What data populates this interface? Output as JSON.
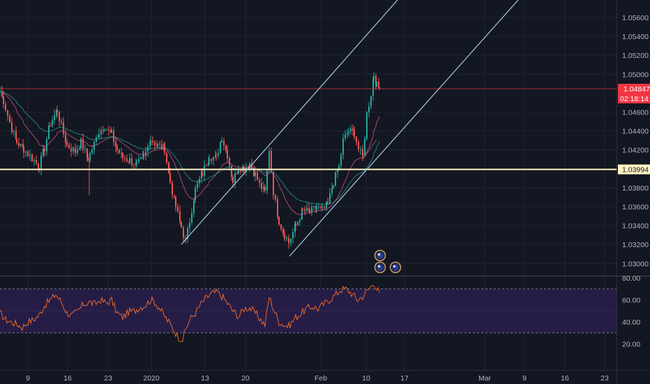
{
  "colors": {
    "background": "#131722",
    "grid": "#1f2433",
    "up": "#26a69a",
    "down": "#ef5350",
    "channel": "#a9cde8",
    "support": "#fff3c4",
    "current_price_line": "#f23645",
    "rsi_line": "#e8682a",
    "rsi_band": "#2a1f4d",
    "axis_text": "#b2b5be"
  },
  "chart_data": [
    {
      "type": "candlestick",
      "ylim": [
        1.0285,
        1.0575
      ],
      "y_ticks": [
        "1.05600",
        "1.05400",
        "1.05200",
        "1.05000",
        "1.04600",
        "1.04400",
        "1.04200",
        "1.03800",
        "1.03600",
        "1.03400",
        "1.03200",
        "1.03000"
      ],
      "x_ticks": [
        "9",
        "16",
        "23",
        "2020",
        "13",
        "20",
        "Feb",
        "10",
        "17",
        "Mar",
        "9",
        "16",
        "23"
      ],
      "price_path": [
        [
          0,
          1.0482
        ],
        [
          5,
          1.0472
        ],
        [
          14,
          1.0449
        ],
        [
          24,
          1.0428
        ],
        [
          34,
          1.0421
        ],
        [
          46,
          1.0411
        ],
        [
          56,
          1.0403
        ],
        [
          64,
          1.0422
        ],
        [
          72,
          1.0448
        ],
        [
          82,
          1.0462
        ],
        [
          88,
          1.0445
        ],
        [
          96,
          1.0425
        ],
        [
          108,
          1.0418
        ],
        [
          116,
          1.0428
        ],
        [
          126,
          1.0411
        ],
        [
          132,
          1.0421
        ],
        [
          142,
          1.0439
        ],
        [
          150,
          1.0445
        ],
        [
          160,
          1.0436
        ],
        [
          168,
          1.042
        ],
        [
          176,
          1.0412
        ],
        [
          186,
          1.0409
        ],
        [
          196,
          1.0404
        ],
        [
          206,
          1.0411
        ],
        [
          216,
          1.0431
        ],
        [
          226,
          1.0425
        ],
        [
          236,
          1.0421
        ],
        [
          244,
          1.0386
        ],
        [
          252,
          1.036
        ],
        [
          260,
          1.0338
        ],
        [
          266,
          1.0323
        ],
        [
          272,
          1.0345
        ],
        [
          280,
          1.0378
        ],
        [
          290,
          1.0395
        ],
        [
          300,
          1.0414
        ],
        [
          310,
          1.0411
        ],
        [
          318,
          1.0434
        ],
        [
          326,
          1.0415
        ],
        [
          334,
          1.0387
        ],
        [
          342,
          1.0402
        ],
        [
          350,
          1.0401
        ],
        [
          358,
          1.0406
        ],
        [
          366,
          1.0394
        ],
        [
          372,
          1.0383
        ],
        [
          380,
          1.0375
        ],
        [
          386,
          1.0421
        ],
        [
          392,
          1.0376
        ],
        [
          400,
          1.0345
        ],
        [
          408,
          1.033
        ],
        [
          414,
          1.0322
        ],
        [
          424,
          1.034
        ],
        [
          434,
          1.0356
        ],
        [
          444,
          1.0354
        ],
        [
          454,
          1.0359
        ],
        [
          462,
          1.0356
        ],
        [
          470,
          1.0362
        ],
        [
          478,
          1.0386
        ],
        [
          486,
          1.0402
        ],
        [
          492,
          1.043
        ],
        [
          500,
          1.044
        ],
        [
          508,
          1.0438
        ],
        [
          514,
          1.0421
        ],
        [
          520,
          1.0412
        ],
        [
          526,
          1.0458
        ],
        [
          532,
          1.048
        ],
        [
          536,
          1.05
        ],
        [
          540,
          1.0488
        ],
        [
          544,
          1.0485
        ]
      ],
      "price_labels": {
        "current": "1.04847",
        "countdown": "02:18:14",
        "support": "1.03994"
      },
      "support_level": 1.03994,
      "current_price": 1.04847
    },
    {
      "type": "line",
      "ylim": [
        17,
        83
      ],
      "y_ticks": [
        "80.00",
        "60.00",
        "40.00",
        "20.00"
      ],
      "band": [
        30,
        70
      ],
      "values_path": [
        [
          0,
          48
        ],
        [
          8,
          42
        ],
        [
          16,
          40
        ],
        [
          24,
          38
        ],
        [
          32,
          35
        ],
        [
          40,
          40
        ],
        [
          48,
          42
        ],
        [
          56,
          46
        ],
        [
          64,
          55
        ],
        [
          72,
          60
        ],
        [
          80,
          65
        ],
        [
          88,
          58
        ],
        [
          96,
          48
        ],
        [
          104,
          46
        ],
        [
          112,
          50
        ],
        [
          120,
          56
        ],
        [
          128,
          58
        ],
        [
          136,
          56
        ],
        [
          144,
          60
        ],
        [
          152,
          57
        ],
        [
          160,
          60
        ],
        [
          168,
          48
        ],
        [
          176,
          44
        ],
        [
          184,
          49
        ],
        [
          192,
          50
        ],
        [
          200,
          53
        ],
        [
          208,
          55
        ],
        [
          216,
          60
        ],
        [
          222,
          58
        ],
        [
          228,
          53
        ],
        [
          236,
          45
        ],
        [
          244,
          38
        ],
        [
          250,
          32
        ],
        [
          256,
          26
        ],
        [
          262,
          24
        ],
        [
          266,
          33
        ],
        [
          272,
          42
        ],
        [
          280,
          48
        ],
        [
          288,
          56
        ],
        [
          296,
          62
        ],
        [
          304,
          66
        ],
        [
          312,
          67
        ],
        [
          320,
          62
        ],
        [
          326,
          57
        ],
        [
          334,
          50
        ],
        [
          342,
          45
        ],
        [
          350,
          52
        ],
        [
          358,
          53
        ],
        [
          366,
          48
        ],
        [
          374,
          42
        ],
        [
          380,
          37
        ],
        [
          386,
          63
        ],
        [
          392,
          52
        ],
        [
          400,
          40
        ],
        [
          408,
          37
        ],
        [
          414,
          36
        ],
        [
          424,
          44
        ],
        [
          432,
          48
        ],
        [
          440,
          52
        ],
        [
          448,
          54
        ],
        [
          456,
          52
        ],
        [
          464,
          56
        ],
        [
          472,
          60
        ],
        [
          480,
          64
        ],
        [
          488,
          69
        ],
        [
          496,
          70
        ],
        [
          504,
          66
        ],
        [
          512,
          60
        ],
        [
          520,
          63
        ],
        [
          526,
          68
        ],
        [
          532,
          72
        ],
        [
          536,
          76
        ],
        [
          540,
          70
        ],
        [
          544,
          67
        ]
      ]
    }
  ]
}
